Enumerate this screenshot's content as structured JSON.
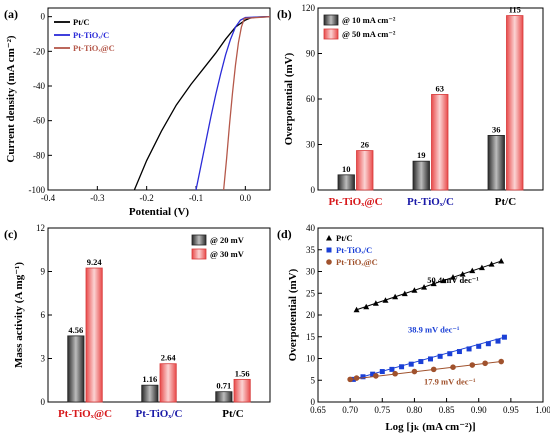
{
  "chart_data": [
    {
      "panel": "(a)",
      "type": "line",
      "xlabel": "Potential (V)",
      "ylabel": "Current density (mA cm⁻²)",
      "xlim": [
        -0.4,
        0.05
      ],
      "ylim": [
        -100,
        5
      ],
      "xticks": [
        "-0.4",
        "-0.3",
        "-0.2",
        "-0.1",
        "0.0"
      ],
      "yticks": [
        "-100",
        "-80",
        "-60",
        "-40",
        "-20",
        "0"
      ],
      "legend_position": "top-left",
      "series": [
        {
          "name": "Pt/C",
          "color": "#000000",
          "x": [
            -0.225,
            -0.2,
            -0.17,
            -0.14,
            -0.11,
            -0.085,
            -0.06,
            -0.04,
            -0.02,
            0.0,
            0.01,
            0.02,
            0.05
          ],
          "y": [
            -100,
            -83,
            -66,
            -51,
            -39,
            -30,
            -21,
            -13,
            -6,
            -2,
            -0.8,
            -0.3,
            0
          ]
        },
        {
          "name": "Pt-TiOₓ/C",
          "color": "#2b2bd8",
          "x": [
            -0.1,
            -0.09,
            -0.08,
            -0.07,
            -0.06,
            -0.05,
            -0.04,
            -0.03,
            -0.02,
            -0.01,
            0.0,
            0.05
          ],
          "y": [
            -100,
            -86,
            -72,
            -58,
            -45,
            -33,
            -22,
            -13,
            -6,
            -2,
            -0.5,
            0
          ]
        },
        {
          "name": "Pt-TiOₓ@C",
          "color": "#b5584a",
          "x": [
            -0.044,
            -0.038,
            -0.032,
            -0.026,
            -0.02,
            -0.014,
            -0.008,
            -0.002,
            0.05
          ],
          "y": [
            -100,
            -82,
            -62,
            -44,
            -28,
            -15,
            -6,
            -1,
            0
          ]
        }
      ]
    },
    {
      "panel": "(b)",
      "type": "bar",
      "ylabel": "Overpotential (mV)",
      "ylim": [
        0,
        120
      ],
      "yticks": [
        "0",
        "30",
        "60",
        "90",
        "120"
      ],
      "categories": [
        "Pt-TiOₓ@C",
        "Pt-TiOₓ/C",
        "Pt/C"
      ],
      "category_colors": [
        "#d7191c",
        "#1a1aa8",
        "#000000"
      ],
      "legend_position": "top-left",
      "series": [
        {
          "name": "@ 10 mA cm⁻²",
          "values": [
            10,
            19,
            36
          ],
          "labels": [
            "10",
            "19",
            "36"
          ]
        },
        {
          "name": "@ 50 mA cm⁻²",
          "values": [
            26,
            63,
            115
          ],
          "labels": [
            "26",
            "63",
            "115"
          ]
        }
      ]
    },
    {
      "panel": "(c)",
      "type": "bar",
      "ylabel": "Mass activity (A mg⁻¹)",
      "ylim": [
        0,
        12
      ],
      "yticks": [
        "0",
        "3",
        "6",
        "9",
        "12"
      ],
      "categories": [
        "Pt-TiOₓ@C",
        "Pt-TiOₓ/C",
        "Pt/C"
      ],
      "category_colors": [
        "#d7191c",
        "#1a1aa8",
        "#000000"
      ],
      "legend_position": "top-right",
      "series": [
        {
          "name": "@ 20 mV",
          "values": [
            4.56,
            1.16,
            0.71
          ],
          "labels": [
            "4.56",
            "1.16",
            "0.71"
          ]
        },
        {
          "name": "@ 30 mV",
          "values": [
            9.24,
            2.64,
            1.56
          ],
          "labels": [
            "9.24",
            "2.64",
            "1.56"
          ]
        }
      ]
    },
    {
      "panel": "(d)",
      "type": "scatter",
      "xlabel": "Log [jₖ (mA cm⁻²)]",
      "ylabel": "Overpotential (mV)",
      "xlim": [
        0.65,
        1.0
      ],
      "ylim": [
        0,
        40
      ],
      "xticks": [
        "0.65",
        "0.70",
        "0.75",
        "0.80",
        "0.85",
        "0.90",
        "0.95",
        "1.00"
      ],
      "yticks": [
        "0",
        "5",
        "10",
        "15",
        "20",
        "25",
        "30",
        "35",
        "40"
      ],
      "legend_position": "top-left",
      "series": [
        {
          "name": "Pt/C",
          "color": "#000000",
          "marker": "triangle",
          "x": [
            0.71,
            0.725,
            0.74,
            0.755,
            0.77,
            0.785,
            0.8,
            0.815,
            0.83,
            0.845,
            0.86,
            0.875,
            0.89,
            0.905,
            0.92,
            0.935
          ],
          "y": [
            21.2,
            21.9,
            22.7,
            23.4,
            24.2,
            24.9,
            25.7,
            26.4,
            27.2,
            27.9,
            28.7,
            29.4,
            30.2,
            30.9,
            31.7,
            32.4
          ],
          "slope_label": "50.4 mV dec⁻¹"
        },
        {
          "name": "Pt-TiOₓ/C",
          "color": "#1a3fd6",
          "marker": "square",
          "x": [
            0.705,
            0.72,
            0.735,
            0.75,
            0.765,
            0.78,
            0.795,
            0.81,
            0.825,
            0.84,
            0.855,
            0.87,
            0.885,
            0.9,
            0.915,
            0.93,
            0.94
          ],
          "y": [
            5.2,
            5.8,
            6.4,
            7.0,
            7.5,
            8.1,
            8.7,
            9.3,
            9.9,
            10.5,
            11.1,
            11.6,
            12.2,
            12.8,
            13.4,
            14.0,
            14.9
          ],
          "slope_label": "38.9 mV dec⁻¹"
        },
        {
          "name": "Pt-TiOₓ@C",
          "color": "#a0522d",
          "marker": "circle",
          "x": [
            0.7,
            0.71,
            0.74,
            0.77,
            0.8,
            0.83,
            0.86,
            0.89,
            0.91,
            0.935
          ],
          "y": [
            5.2,
            5.5,
            6.0,
            6.5,
            7.0,
            7.5,
            8.0,
            8.5,
            8.9,
            9.3
          ],
          "slope_label": "17.9 mV dec⁻¹"
        }
      ]
    }
  ]
}
